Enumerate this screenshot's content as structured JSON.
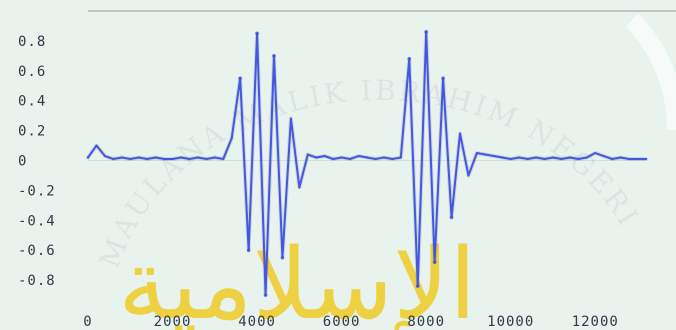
{
  "colors": {
    "background": "#e9f3ee",
    "primary_wave": "#3d4fe0",
    "secondary_wave": "#7e8db7",
    "axis": "#9aa1a3",
    "text": "#2f3b45",
    "watermark": "#f0c400",
    "watermark_fade": "#d9e0df"
  },
  "chart": {
    "y_ticks": [
      "0.8",
      "0.6",
      "0.4",
      "0.2",
      "0",
      "-0.2",
      "-0.4",
      "-0.6",
      "-0.8"
    ],
    "x_ticks": [
      "0",
      "2000",
      "4000",
      "6000",
      "8000",
      "10000",
      "12000"
    ]
  },
  "chart_data": {
    "type": "line",
    "title": "",
    "xlabel": "",
    "ylabel": "",
    "xlim": [
      0,
      13200
    ],
    "ylim": [
      -1,
      1
    ],
    "grid": false,
    "legend": "none",
    "x_ticks": [
      0,
      2000,
      4000,
      6000,
      8000,
      10000,
      12000
    ],
    "y_ticks": [
      0.8,
      0.6,
      0.4,
      0.2,
      0,
      -0.2,
      -0.4,
      -0.6,
      -0.8
    ],
    "series": [
      {
        "x": [
          0,
          200,
          400,
          600,
          800,
          1000,
          1200,
          1400,
          1600,
          1800,
          2000,
          2200,
          2400,
          2600,
          2800,
          3000,
          3200,
          3400,
          3600,
          3800,
          4000,
          4200,
          4400,
          4600,
          4800,
          5000,
          5200,
          5400,
          5600,
          5800,
          6000,
          6200,
          6400,
          6600,
          6800,
          7000,
          7200,
          7400,
          7600,
          7800,
          8000,
          8200,
          8400,
          8600,
          8800,
          9000,
          9200,
          9400,
          9600,
          9800,
          10000,
          10200,
          10400,
          10600,
          10800,
          11000,
          11200,
          11400,
          11600,
          11800,
          12000,
          12200,
          12400,
          12600,
          12800,
          13000,
          13200
        ],
        "y": [
          0.02,
          0.1,
          0.03,
          0.01,
          0.02,
          0.01,
          0.02,
          0.01,
          0.02,
          0.01,
          0.01,
          0.02,
          0.01,
          0.02,
          0.01,
          0.02,
          0.01,
          0.15,
          0.55,
          -0.6,
          0.85,
          -0.9,
          0.7,
          -0.65,
          0.28,
          -0.18,
          0.04,
          0.02,
          0.03,
          0.01,
          0.02,
          0.01,
          0.03,
          0.02,
          0.01,
          0.02,
          0.01,
          0.02,
          0.68,
          -0.84,
          0.86,
          -0.68,
          0.55,
          -0.38,
          0.18,
          -0.1,
          0.05,
          0.04,
          0.03,
          0.02,
          0.01,
          0.02,
          0.01,
          0.02,
          0.01,
          0.02,
          0.01,
          0.02,
          0.01,
          0.02,
          0.05,
          0.03,
          0.01,
          0.02,
          0.01,
          0.01,
          0.01
        ]
      }
    ]
  },
  "watermark": {
    "arc_text": "MAULANA MALIK IBRAHIM NEGERI",
    "arabic_text": "الإسلامية"
  }
}
